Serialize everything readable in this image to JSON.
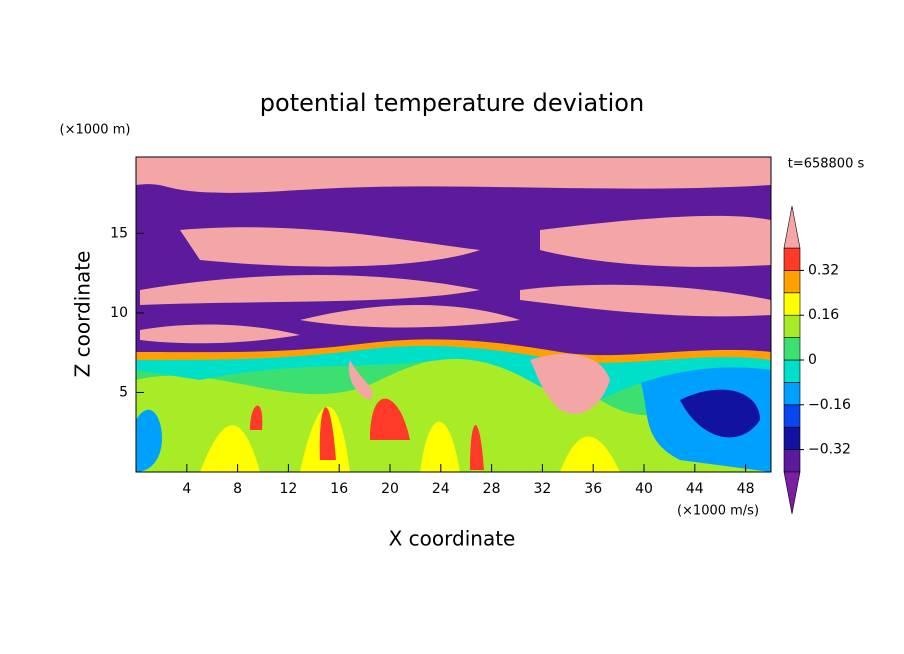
{
  "chart_data": {
    "type": "contour",
    "title": "potential temperature deviation",
    "x_label": "X coordinate",
    "y_label": "Z coordinate",
    "x_unit": "(×1000 m/s)",
    "y_unit": "(×1000 m)",
    "time_label": "t=658800 s",
    "xlim": [
      0,
      50
    ],
    "xticks": [
      4,
      8,
      12,
      16,
      20,
      24,
      28,
      32,
      36,
      40,
      44,
      48
    ],
    "ylim": [
      0,
      19.8
    ],
    "yticks": [
      5,
      10,
      15
    ],
    "levels": [
      -0.4,
      -0.32,
      -0.24,
      -0.16,
      -0.08,
      0,
      0.08,
      0.16,
      0.24,
      0.32,
      0.4
    ],
    "colors": [
      "#5c1a9c",
      "#1212a0",
      "#0a46f0",
      "#00a0ff",
      "#00e0c8",
      "#3ce070",
      "#a8ec28",
      "#ffff00",
      "#ffa000",
      "#ff3a28"
    ],
    "under_color": "#7b1fa2",
    "over_color": "#f4a6a6",
    "cbar_ticks": [
      {
        "value": 0.32,
        "label": "0.32"
      },
      {
        "value": 0.16,
        "label": "0.16"
      },
      0,
      {
        "value": -0.16,
        "label": "−0.16"
      },
      {
        "value": -0.32,
        "label": "−0.32"
      }
    ]
  }
}
